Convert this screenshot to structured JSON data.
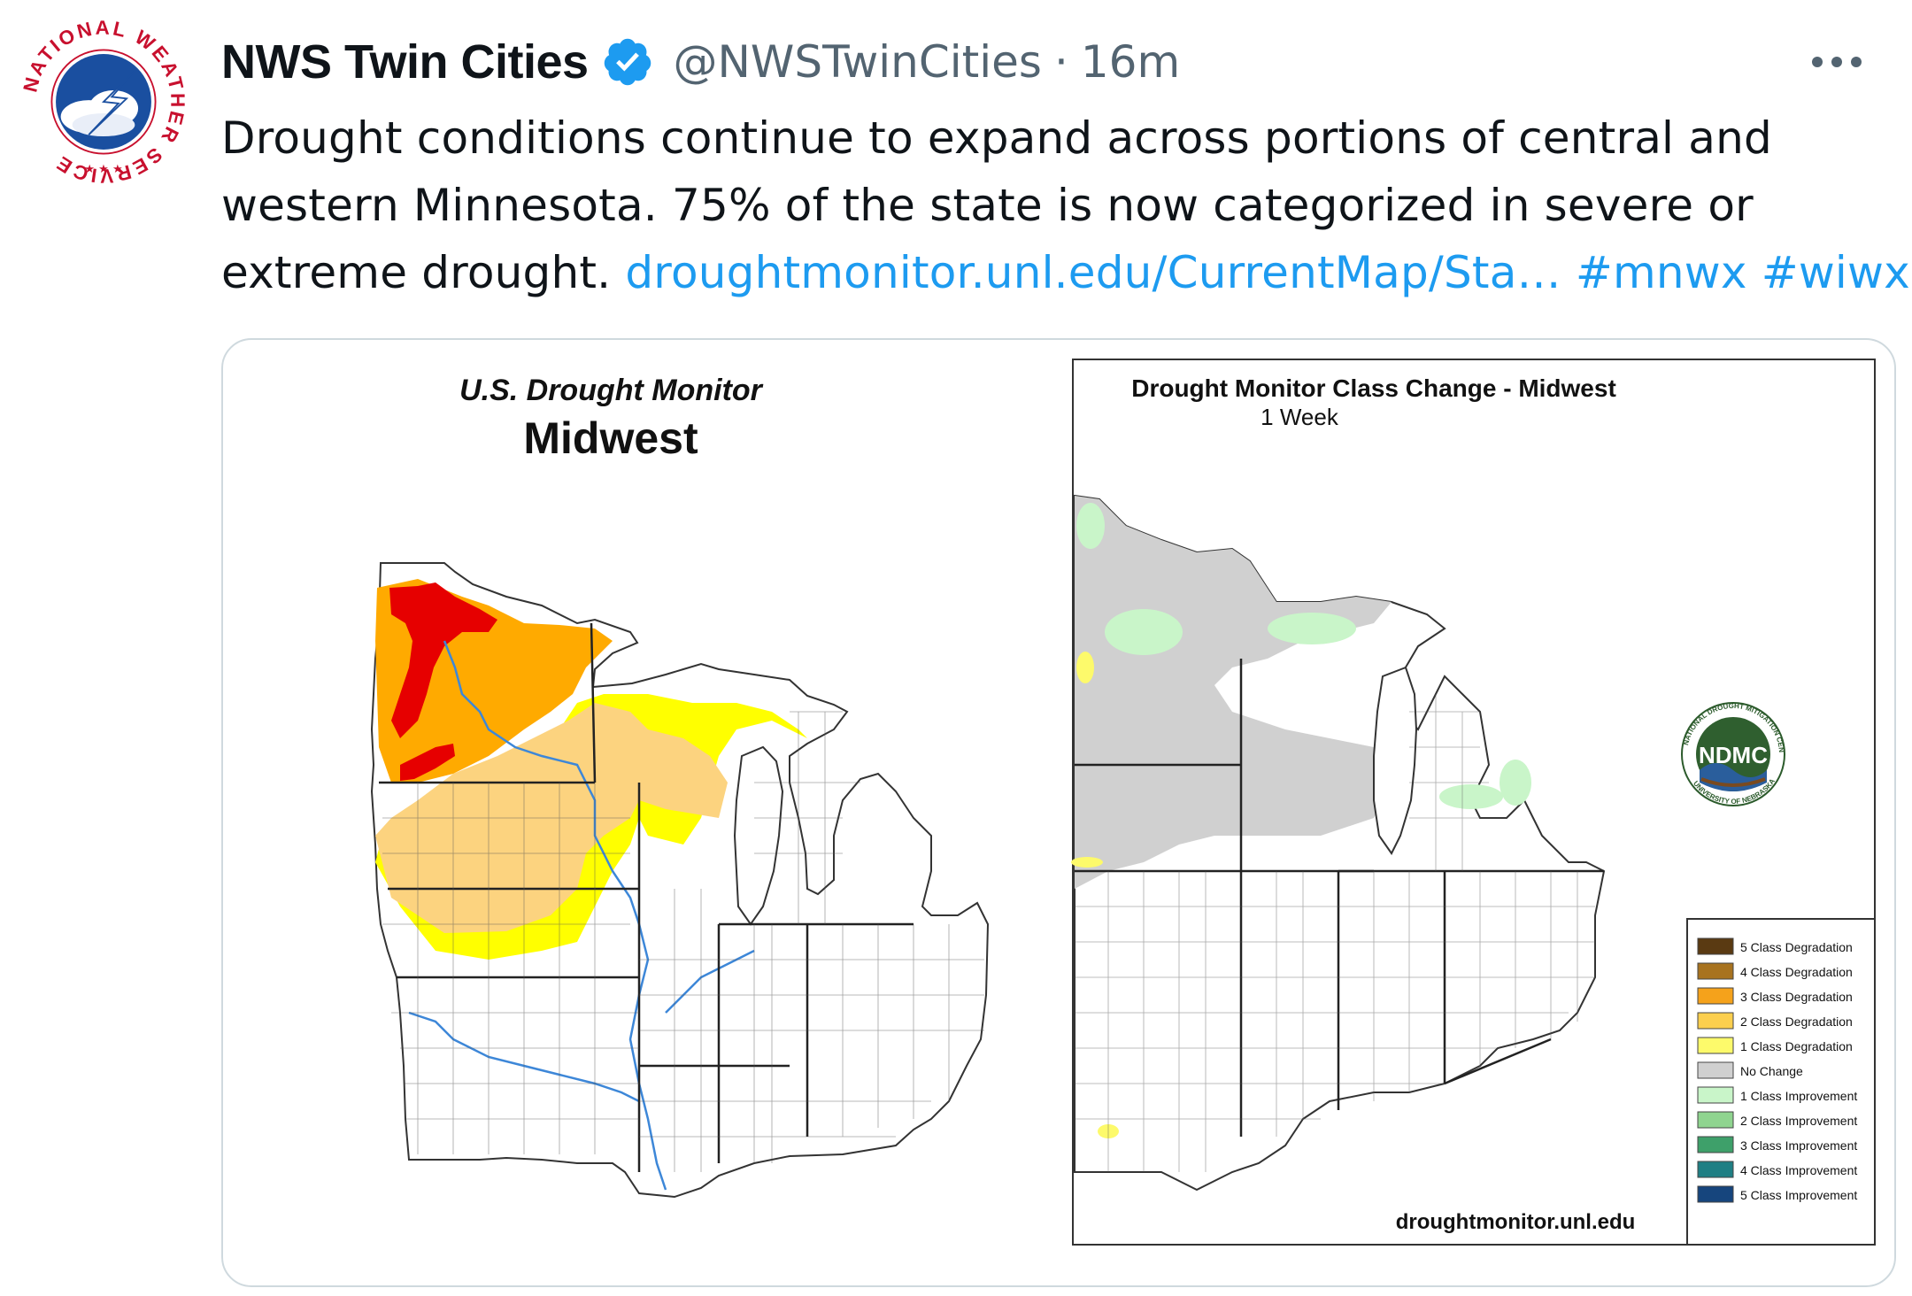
{
  "tweet": {
    "display_name": "NWS Twin Cities",
    "handle": "@NWSTwinCities",
    "separator": "·",
    "time": "16m",
    "text_line1": "Drought conditions continue to expand across portions of central and",
    "text_line2": "western Minnesota. 75% of the state is now categorized in severe or",
    "text_line3_plain": "extreme drought. ",
    "link": "droughtmonitor.unl.edu/CurrentMap/Sta…",
    "hashtag1": "#mnwx",
    "hashtag2": "#wiwx"
  },
  "avatar": {
    "ring_text": "NATIONAL WEATHER SERVICE"
  },
  "left_map": {
    "title": "U.S. Drought Monitor",
    "subtitle": "Midwest"
  },
  "right_map": {
    "title": "Drought Monitor Class Change - Midwest",
    "subtitle": "1 Week",
    "logo_text": "NDMC",
    "logo_ring_top": "NATIONAL DROUGHT MITIGATION CENTER",
    "logo_ring_bottom": "UNIVERSITY OF NEBRASKA",
    "source": "droughtmonitor.unl.edu",
    "legend": [
      {
        "label": "5 Class Degradation",
        "color": "#5a3a12"
      },
      {
        "label": "4 Class Degradation",
        "color": "#a8731f"
      },
      {
        "label": "3 Class Degradation",
        "color": "#f5a21b"
      },
      {
        "label": "2 Class Degradation",
        "color": "#fccf4e"
      },
      {
        "label": "1 Class Degradation",
        "color": "#fdfa6b"
      },
      {
        "label": "No Change",
        "color": "#d0d0d0"
      },
      {
        "label": "1 Class Improvement",
        "color": "#c9f5c9"
      },
      {
        "label": "2 Class Improvement",
        "color": "#8fd48f"
      },
      {
        "label": "3 Class Improvement",
        "color": "#3ea06a"
      },
      {
        "label": "4 Class Improvement",
        "color": "#1f7f84"
      },
      {
        "label": "5 Class Improvement",
        "color": "#16457d"
      }
    ]
  },
  "colors": {
    "link": "#1d9bf0",
    "verified": "#1d9bf0",
    "drought_d1": "#fcd37f",
    "drought_d2": "#ffaa00",
    "drought_d3": "#e60000",
    "drought_d0": "#ffff00"
  }
}
